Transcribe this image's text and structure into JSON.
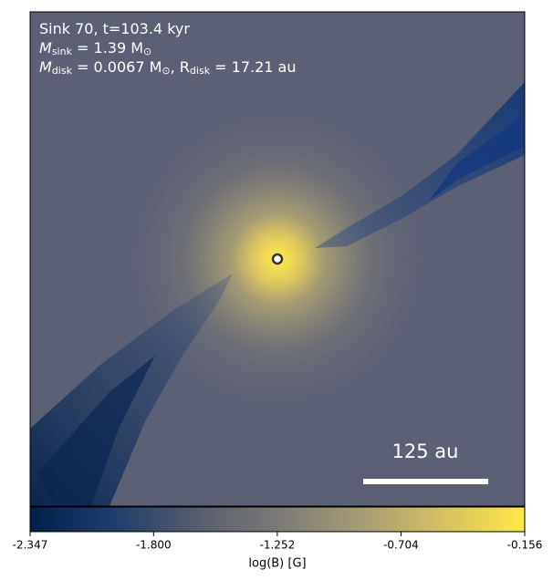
{
  "chart_data": {
    "type": "heatmap",
    "info_lines": [
      [
        {
          "text": "Sink 70, t=103.4 kyr"
        }
      ],
      [
        {
          "text": "M"
        },
        {
          "text": "sink",
          "sub": true
        },
        {
          "text": " = 1.39 M"
        },
        {
          "text": "⊙",
          "sub": true
        }
      ],
      [
        {
          "text": "M"
        },
        {
          "text": "disk",
          "sub": true
        },
        {
          "text": " = 0.0067 M"
        },
        {
          "text": "⊙",
          "sub": true
        },
        {
          "text": ", R"
        },
        {
          "text": "disk",
          "sub": true
        },
        {
          "text": " = 17.21 au"
        }
      ]
    ],
    "scale_bar_label": "125 au",
    "colorbar": {
      "label": "log(B) [G]",
      "lim": [
        -2.347,
        -0.156
      ],
      "ticks": [
        -2.347,
        {
          "value": -1.8,
          "label": "-1.800"
        },
        -1.252,
        -0.704,
        -0.156
      ]
    }
  }
}
